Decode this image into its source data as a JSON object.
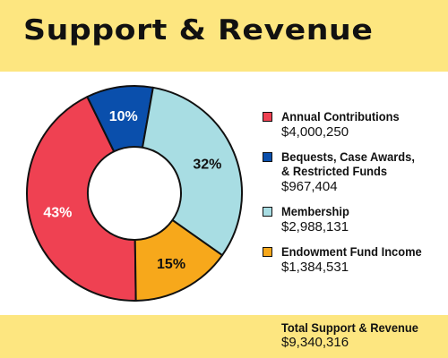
{
  "header": {
    "title": "Support & Revenue"
  },
  "colors": {
    "band": "#fde680",
    "outline": "#111111"
  },
  "chart_data": {
    "type": "pie",
    "donut": true,
    "slices": [
      {
        "name": "Annual Contributions",
        "amount": "$4,000,250",
        "percent": 43,
        "label": "43%",
        "color": "#ef4152",
        "label_color": "#ffffff"
      },
      {
        "name": "Bequests, Case Awards, & Restricted Funds",
        "name_lines": [
          "Bequests, Case Awards,",
          "& Restricted Funds"
        ],
        "amount": "$967,404",
        "percent": 10,
        "label": "10%",
        "color": "#0a4fac",
        "label_color": "#ffffff"
      },
      {
        "name": "Membership",
        "amount": "$2,988,131",
        "percent": 32,
        "label": "32%",
        "color": "#a8dde3",
        "label_color": "#111111"
      },
      {
        "name": "Endowment Fund Income",
        "amount": "$1,384,531",
        "percent": 15,
        "label": "15%",
        "color": "#f7a81b",
        "label_color": "#111111"
      }
    ]
  },
  "total": {
    "label": "Total Support & Revenue",
    "value": "$9,340,316"
  }
}
